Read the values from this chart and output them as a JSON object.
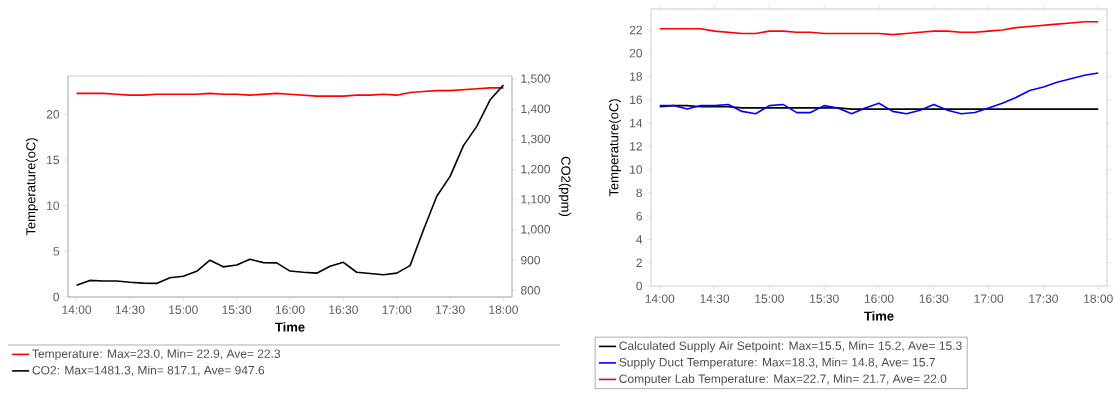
{
  "chart_data": [
    {
      "type": "line",
      "xlabel": "Time",
      "ylabel": "Temperature(oC)",
      "y2label": "CO2(ppm)",
      "legend": "bottom",
      "xlim": [
        13.92,
        18.08
      ],
      "ylim": [
        0,
        24.2
      ],
      "y2lim": [
        778,
        1511
      ],
      "xticks": [
        {
          "value": 14,
          "label": "14:00"
        },
        {
          "value": 14.5,
          "label": "14:30"
        },
        {
          "value": 15,
          "label": "15:00"
        },
        {
          "value": 15.5,
          "label": "15:30"
        },
        {
          "value": 16,
          "label": "16:00"
        },
        {
          "value": 16.5,
          "label": "16:30"
        },
        {
          "value": 17,
          "label": "17:00"
        },
        {
          "value": 17.5,
          "label": "17:30"
        },
        {
          "value": 18,
          "label": "18:00"
        }
      ],
      "yticks": [
        0,
        5,
        10,
        15,
        20
      ],
      "y2ticks": [
        800,
        900,
        {
          "value": 1000,
          "label": "1,000"
        },
        {
          "value": 1100,
          "label": "1,100"
        },
        {
          "value": 1200,
          "label": "1,200"
        },
        {
          "value": 1300,
          "label": "1,300"
        },
        {
          "value": 1400,
          "label": "1,400"
        },
        {
          "value": 1500,
          "label": "1,500"
        }
      ],
      "x": [
        14,
        14.125,
        14.25,
        14.375,
        14.5,
        14.625,
        14.75,
        14.875,
        15,
        15.125,
        15.25,
        15.375,
        15.5,
        15.625,
        15.75,
        15.875,
        16,
        16.125,
        16.25,
        16.375,
        16.5,
        16.625,
        16.75,
        16.875,
        17,
        17.125,
        17.25,
        17.375,
        17.5,
        17.625,
        17.75,
        17.875,
        18
      ],
      "series": [
        {
          "name": "Temperature:  Max=23.0,  Min= 22.9, Ave= 22.3",
          "color": "#ff0000",
          "values": [
            22.3,
            22.3,
            22.3,
            22.2,
            22.1,
            22.1,
            22.2,
            22.2,
            22.2,
            22.2,
            22.3,
            22.2,
            22.2,
            22.1,
            22.2,
            22.3,
            22.2,
            22.1,
            22.0,
            22.0,
            22.0,
            22.1,
            22.1,
            22.2,
            22.1,
            22.4,
            22.5,
            22.6,
            22.6,
            22.7,
            22.8,
            22.9,
            22.9
          ]
        },
        {
          "name": "CO2:  Max=1481.3,  Min= 817.1, Ave= 947.6",
          "color": "#000000",
          "axis": "y2",
          "values": [
            817,
            833,
            831,
            831,
            827,
            824,
            823,
            842,
            847,
            863,
            900,
            878,
            884,
            903,
            892,
            891,
            864,
            860,
            857,
            880,
            893,
            860,
            856,
            852,
            857,
            882,
            1000,
            1112,
            1178,
            1280,
            1344,
            1432,
            1481
          ]
        }
      ]
    },
    {
      "type": "line",
      "xlabel": "Time",
      "ylabel": "Temperature(oC)",
      "legend": "bottom",
      "xlim": [
        13.92,
        18.08
      ],
      "ylim": [
        0,
        23.8
      ],
      "xticks": [
        {
          "value": 14,
          "label": "14:00"
        },
        {
          "value": 14.5,
          "label": "14:30"
        },
        {
          "value": 15,
          "label": "15:00"
        },
        {
          "value": 15.5,
          "label": "15:30"
        },
        {
          "value": 16,
          "label": "16:00"
        },
        {
          "value": 16.5,
          "label": "16:30"
        },
        {
          "value": 17,
          "label": "17:00"
        },
        {
          "value": 17.5,
          "label": "17:30"
        },
        {
          "value": 18,
          "label": "18:00"
        }
      ],
      "yticks": [
        0,
        2,
        4,
        6,
        8,
        10,
        12,
        14,
        16,
        18,
        20,
        22
      ],
      "x": [
        14,
        14.125,
        14.25,
        14.375,
        14.5,
        14.625,
        14.75,
        14.875,
        15,
        15.125,
        15.25,
        15.375,
        15.5,
        15.625,
        15.75,
        15.875,
        16,
        16.125,
        16.25,
        16.375,
        16.5,
        16.625,
        16.75,
        16.875,
        17,
        17.125,
        17.25,
        17.375,
        17.5,
        17.625,
        17.75,
        17.875,
        18
      ],
      "series": [
        {
          "name": "Calculated Supply Air Setpoint:  Max=15.5,  Min= 15.2, Ave= 15.3",
          "color": "#000000",
          "values": [
            15.4,
            15.5,
            15.5,
            15.4,
            15.4,
            15.4,
            15.3,
            15.3,
            15.3,
            15.3,
            15.3,
            15.3,
            15.3,
            15.3,
            15.2,
            15.2,
            15.2,
            15.2,
            15.2,
            15.2,
            15.2,
            15.2,
            15.2,
            15.2,
            15.2,
            15.2,
            15.2,
            15.2,
            15.2,
            15.2,
            15.2,
            15.2,
            15.2
          ]
        },
        {
          "name": "Supply Duct Temperature:  Max=18.3,  Min= 14.8, Ave= 15.7",
          "color": "#0000ff",
          "values": [
            15.5,
            15.5,
            15.2,
            15.5,
            15.5,
            15.6,
            15.0,
            14.8,
            15.5,
            15.6,
            14.9,
            14.9,
            15.5,
            15.3,
            14.8,
            15.3,
            15.7,
            15.0,
            14.8,
            15.1,
            15.6,
            15.1,
            14.8,
            14.9,
            15.3,
            15.7,
            16.2,
            16.8,
            17.1,
            17.5,
            17.8,
            18.1,
            18.3
          ]
        },
        {
          "name": "Computer Lab Temperature:  Max=22.7,  Min= 21.7, Ave= 22.0",
          "color": "#ff0000",
          "values": [
            22.1,
            22.1,
            22.1,
            22.1,
            21.9,
            21.8,
            21.7,
            21.7,
            21.9,
            21.9,
            21.8,
            21.8,
            21.7,
            21.7,
            21.7,
            21.7,
            21.7,
            21.6,
            21.7,
            21.8,
            21.9,
            21.9,
            21.8,
            21.8,
            21.9,
            22.0,
            22.2,
            22.3,
            22.4,
            22.5,
            22.6,
            22.7,
            22.7
          ]
        }
      ]
    }
  ]
}
